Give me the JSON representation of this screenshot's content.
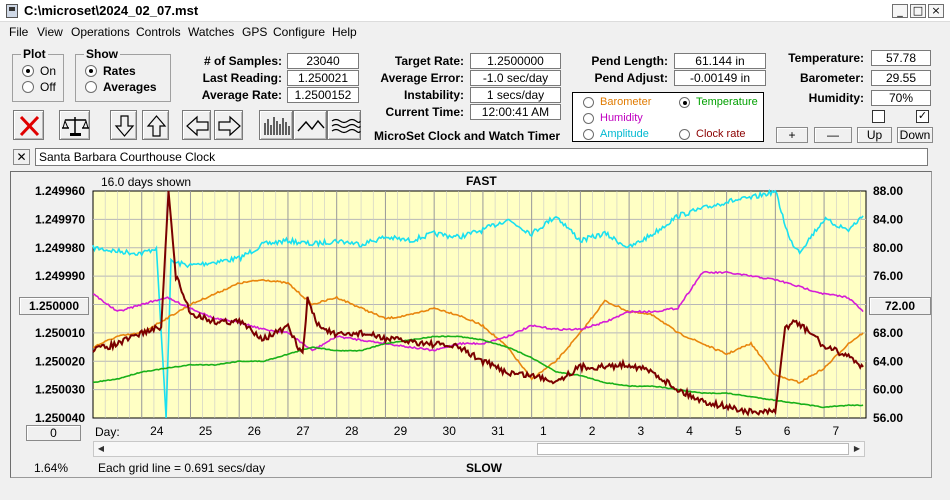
{
  "window": {
    "title": "C:\\microset\\2024_02_07.mst"
  },
  "menu": [
    "File",
    "View",
    "Operations",
    "Controls",
    "Watches",
    "GPS",
    "Configure",
    "Help"
  ],
  "plot_group": {
    "title": "Plot",
    "options": [
      "On",
      "Off"
    ],
    "selected": "On"
  },
  "show_group": {
    "title": "Show",
    "options": [
      "Rates",
      "Averages"
    ],
    "selected": "Rates"
  },
  "stats": {
    "samples_label": "# of Samples:",
    "samples": "23040",
    "last_reading_label": "Last Reading:",
    "last_reading": "1.250021",
    "average_rate_label": "Average Rate:",
    "average_rate": "1.2500152",
    "target_rate_label": "Target Rate:",
    "target_rate": "1.2500000",
    "average_error_label": "Average Error:",
    "average_error": "-1.0 sec/day",
    "instability_label": "Instability:",
    "instability": "1 secs/day",
    "current_time_label": "Current Time:",
    "current_time": "12:00:41 AM",
    "pend_length_label": "Pend Length:",
    "pend_length": "61.144 in",
    "pend_adjust_label": "Pend Adjust:",
    "pend_adjust": "-0.00149 in",
    "temperature_label": "Temperature:",
    "temperature": "57.78",
    "barometer_label": "Barometer:",
    "barometer": "29.55",
    "humidity_label": "Humidity:",
    "humidity": "70%"
  },
  "subtitle": "MicroSet Clock and Watch Timer",
  "series_selector": [
    {
      "label": "Barometer",
      "color": "#e07a00",
      "selected": false
    },
    {
      "label": "Temperature",
      "color": "#00a000",
      "selected": true
    },
    {
      "label": "Humidity",
      "color": "#c000c0",
      "selected": false
    },
    {
      "label": "Amplitude",
      "color": "#00b8d0",
      "selected": false
    },
    {
      "label": "Clock rate",
      "color": "#8b0000",
      "selected": false
    }
  ],
  "adjust_buttons": [
    "+",
    "—",
    "Up",
    "Down"
  ],
  "checkboxes": [
    false,
    true
  ],
  "description": "Santa Barbara Courthouse Clock",
  "chart": {
    "top_label": "FAST",
    "bottom_label": "SLOW",
    "days_shown": "16.0 days shown",
    "grid_note": "Each grid line = 0.691 secs/day",
    "percent": "1.64%",
    "center_button": "1.250000",
    "right_button": "72.00",
    "bottom_button": "0",
    "day_label": "Day:"
  },
  "chart_data": {
    "type": "line",
    "top_label": "FAST",
    "bottom_label": "SLOW",
    "x_ticks": [
      "24",
      "25",
      "26",
      "27",
      "28",
      "29",
      "30",
      "31",
      "1",
      "2",
      "3",
      "4",
      "5",
      "6",
      "7"
    ],
    "y_left_ticks": [
      "1.249960",
      "1.249970",
      "1.249980",
      "1.249990",
      "1.250000",
      "1.250010",
      "1.250020",
      "1.250030",
      "1.250040"
    ],
    "y_right_ticks": [
      "88.00",
      "84.00",
      "80.00",
      "76.00",
      "72.00",
      "68.00",
      "64.00",
      "60.00",
      "56.00"
    ],
    "ylim_left": [
      1.24996,
      1.25004
    ],
    "ylim_right": [
      56,
      88
    ],
    "grid": true,
    "series": [
      {
        "name": "Amplitude",
        "color": "#19e0f0",
        "x": [
          23.0,
          23.5,
          24.0,
          24.3,
          24.5,
          24.6,
          25.0,
          25.5,
          26.0,
          26.5,
          27.0,
          27.5,
          28.0,
          28.5,
          29.0,
          29.5,
          30.0,
          30.5,
          31.0,
          31.5,
          32.0,
          32.5,
          33.0,
          33.5,
          34.0,
          34.5,
          35.0,
          35.5,
          36.0,
          36.5,
          37.0,
          37.3,
          37.5,
          38.0,
          38.5,
          38.8
        ],
        "y": [
          80.0,
          79.5,
          79.2,
          80.0,
          56.0,
          78.0,
          77.5,
          78.0,
          78.5,
          80.5,
          81.0,
          80.5,
          81.0,
          80.5,
          81.5,
          81.0,
          82.0,
          81.5,
          82.5,
          84.0,
          82.0,
          84.5,
          81.0,
          82.0,
          80.0,
          82.0,
          84.5,
          85.5,
          86.5,
          87.0,
          88.0,
          81.0,
          79.5,
          84.0,
          82.5,
          84.5
        ]
      },
      {
        "name": "Barometer",
        "color": "#e8860e",
        "x": [
          23.0,
          23.5,
          24.0,
          24.5,
          25.0,
          25.5,
          26.0,
          26.5,
          27.0,
          27.5,
          28.0,
          28.5,
          29.0,
          29.5,
          30.0,
          30.5,
          31.0,
          31.5,
          32.0,
          32.5,
          33.0,
          33.5,
          34.0,
          34.5,
          35.0,
          35.5,
          36.0,
          36.5,
          37.0,
          37.5,
          38.0,
          38.5,
          38.8
        ],
        "y": [
          66.0,
          67.5,
          68.0,
          70.0,
          72.0,
          73.5,
          75.0,
          75.5,
          75.0,
          72.0,
          73.0,
          71.5,
          70.0,
          70.5,
          71.5,
          70.5,
          69.0,
          66.0,
          61.5,
          64.0,
          68.0,
          72.5,
          71.0,
          70.5,
          68.0,
          66.5,
          65.0,
          66.5,
          62.0,
          61.0,
          63.0,
          66.5,
          68.0
        ]
      },
      {
        "name": "Humidity",
        "color": "#d61cd6",
        "x": [
          23.0,
          23.5,
          24.0,
          24.5,
          25.0,
          25.5,
          26.0,
          26.5,
          27.0,
          27.5,
          28.0,
          28.5,
          29.0,
          29.5,
          30.0,
          30.5,
          31.0,
          31.5,
          32.0,
          32.5,
          33.0,
          33.5,
          34.0,
          34.5,
          35.0,
          35.5,
          36.0,
          36.5,
          37.0,
          37.5,
          38.0,
          38.5,
          38.8
        ],
        "y": [
          73.5,
          71.0,
          72.0,
          73.0,
          71.5,
          70.0,
          69.5,
          68.5,
          68.0,
          65.5,
          67.5,
          67.0,
          66.5,
          66.0,
          65.5,
          66.5,
          66.5,
          67.5,
          69.0,
          68.5,
          68.5,
          69.5,
          71.0,
          71.0,
          71.5,
          76.5,
          76.5,
          76.0,
          75.5,
          74.5,
          73.5,
          73.0,
          71.0
        ]
      },
      {
        "name": "Temperature",
        "color": "#19b019",
        "x": [
          23.0,
          23.5,
          24.0,
          24.5,
          25.0,
          25.5,
          26.0,
          26.5,
          27.0,
          27.5,
          28.0,
          28.5,
          29.0,
          29.5,
          30.0,
          30.5,
          31.0,
          31.5,
          32.0,
          32.5,
          33.0,
          33.5,
          34.0,
          34.5,
          35.0,
          35.5,
          36.0,
          36.5,
          37.0,
          37.5,
          38.0,
          38.5,
          38.8
        ],
        "y": [
          61.0,
          61.5,
          62.5,
          63.0,
          63.5,
          63.5,
          64.0,
          64.0,
          65.0,
          66.0,
          65.5,
          65.5,
          66.5,
          67.0,
          67.5,
          67.5,
          67.0,
          66.0,
          64.5,
          62.5,
          62.0,
          61.0,
          60.5,
          60.5,
          60.0,
          59.5,
          59.5,
          59.0,
          58.5,
          58.0,
          57.5,
          57.8,
          57.8
        ]
      },
      {
        "name": "Clock rate",
        "color": "#7a0000",
        "x": [
          23.0,
          23.5,
          24.0,
          24.4,
          24.55,
          24.7,
          25.0,
          25.5,
          26.0,
          26.5,
          27.0,
          27.3,
          27.4,
          27.6,
          28.0,
          28.5,
          29.0,
          29.5,
          30.0,
          30.5,
          31.0,
          31.5,
          32.0,
          32.5,
          33.0,
          33.5,
          34.0,
          34.5,
          35.0,
          35.5,
          36.0,
          36.5,
          37.0,
          37.2,
          37.4,
          37.8,
          38.0,
          38.5,
          38.8
        ],
        "y": [
          1.250016,
          1.250014,
          1.25001,
          1.250008,
          1.24996,
          1.24999,
          1.250003,
          1.250006,
          1.250006,
          1.250012,
          1.250008,
          1.250018,
          1.249998,
          1.250007,
          1.250011,
          1.25001,
          1.250012,
          1.250013,
          1.250014,
          1.250015,
          1.25002,
          1.250024,
          1.250025,
          1.250027,
          1.250022,
          1.250022,
          1.250021,
          1.250024,
          1.25003,
          1.250034,
          1.250036,
          1.250038,
          1.250038,
          1.250008,
          1.250006,
          1.250011,
          1.250015,
          1.250018,
          1.250022
        ]
      }
    ]
  }
}
